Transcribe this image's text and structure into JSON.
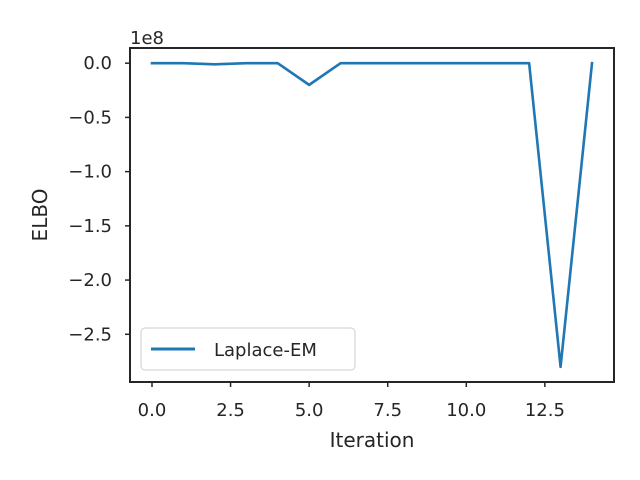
{
  "chart_data": {
    "type": "line",
    "title": "",
    "xlabel": "Iteration",
    "ylabel": "ELBO",
    "y_offset_text": "1e8",
    "xlim": [
      -0.7,
      14.7
    ],
    "ylim": [
      -2.94,
      0.14
    ],
    "xticks": [
      0.0,
      2.5,
      5.0,
      7.5,
      10.0,
      12.5
    ],
    "xtick_labels": [
      "0.0",
      "2.5",
      "5.0",
      "7.5",
      "10.0",
      "12.5"
    ],
    "yticks": [
      0.0,
      -0.5,
      -1.0,
      -1.5,
      -2.0,
      -2.5
    ],
    "ytick_labels": [
      "0.0",
      "−0.5",
      "−1.0",
      "−1.5",
      "−2.0",
      "−2.5"
    ],
    "grid": false,
    "legend_position": "lower-left",
    "series": [
      {
        "name": "Laplace-EM",
        "color": "#1f77b4",
        "x": [
          0,
          1,
          2,
          3,
          4,
          5,
          6,
          7,
          8,
          9,
          10,
          11,
          12,
          13,
          14
        ],
        "y": [
          0.0,
          0.0,
          -0.01,
          0.0,
          0.0,
          -0.2,
          0.0,
          0.0,
          0.0,
          0.0,
          0.0,
          0.0,
          0.0,
          -2.8,
          0.0
        ]
      }
    ]
  }
}
